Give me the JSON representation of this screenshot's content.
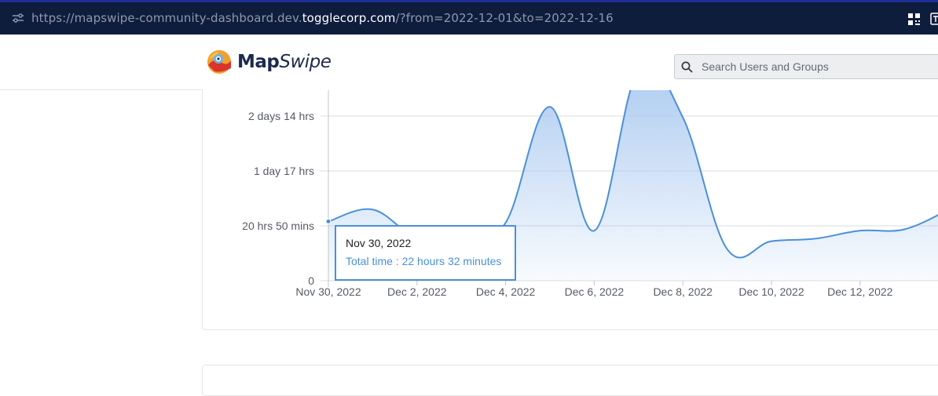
{
  "browser": {
    "url_prefix": "https://mapswipe-community-dashboard.dev.",
    "url_host": "togglecorp.com",
    "url_suffix": "/?from=2022-12-01&to=2022-12-16"
  },
  "header": {
    "logo_map": "Map",
    "logo_swipe": "Swipe",
    "search_placeholder": "Search Users and Groups"
  },
  "colors": {
    "accent": "#4a90d9",
    "area_fill": "#a8c8f0",
    "browser_bar": "#0f1d3d"
  },
  "chart_data": {
    "type": "area",
    "y_tick_labels": [
      "0",
      "20 hrs 50 mins",
      "1 day 17 hrs",
      "2 days 14 hrs"
    ],
    "y_tick_values_hours": [
      0,
      20.833,
      41.667,
      62.5
    ],
    "x_tick_labels": [
      "Nov 30, 2022",
      "Dec 2, 2022",
      "Dec 4, 2022",
      "Dec 6, 2022",
      "Dec 8, 2022",
      "Dec 10, 2022",
      "Dec 12, 2022"
    ],
    "x_tick_day_index": [
      0,
      2,
      4,
      6,
      8,
      10,
      12
    ],
    "points": [
      {
        "day": 0,
        "hours": 22.5
      },
      {
        "day": 1,
        "hours": 27
      },
      {
        "day": 2,
        "hours": 16
      },
      {
        "day": 3,
        "hours": 14
      },
      {
        "day": 4,
        "hours": 22
      },
      {
        "day": 5,
        "hours": 66
      },
      {
        "day": 6,
        "hours": 19
      },
      {
        "day": 7,
        "hours": 80
      },
      {
        "day": 8,
        "hours": 62
      },
      {
        "day": 9,
        "hours": 12
      },
      {
        "day": 10,
        "hours": 15
      },
      {
        "day": 11,
        "hours": 16
      },
      {
        "day": 12,
        "hours": 19
      },
      {
        "day": 13,
        "hours": 19.5
      },
      {
        "day": 14,
        "hours": 27
      }
    ],
    "ylim_hours": [
      0,
      72
    ],
    "grid": true,
    "legend": "none"
  },
  "tooltip": {
    "title": "Nov 30, 2022",
    "value": "Total time : 22 hours 32 minutes"
  }
}
